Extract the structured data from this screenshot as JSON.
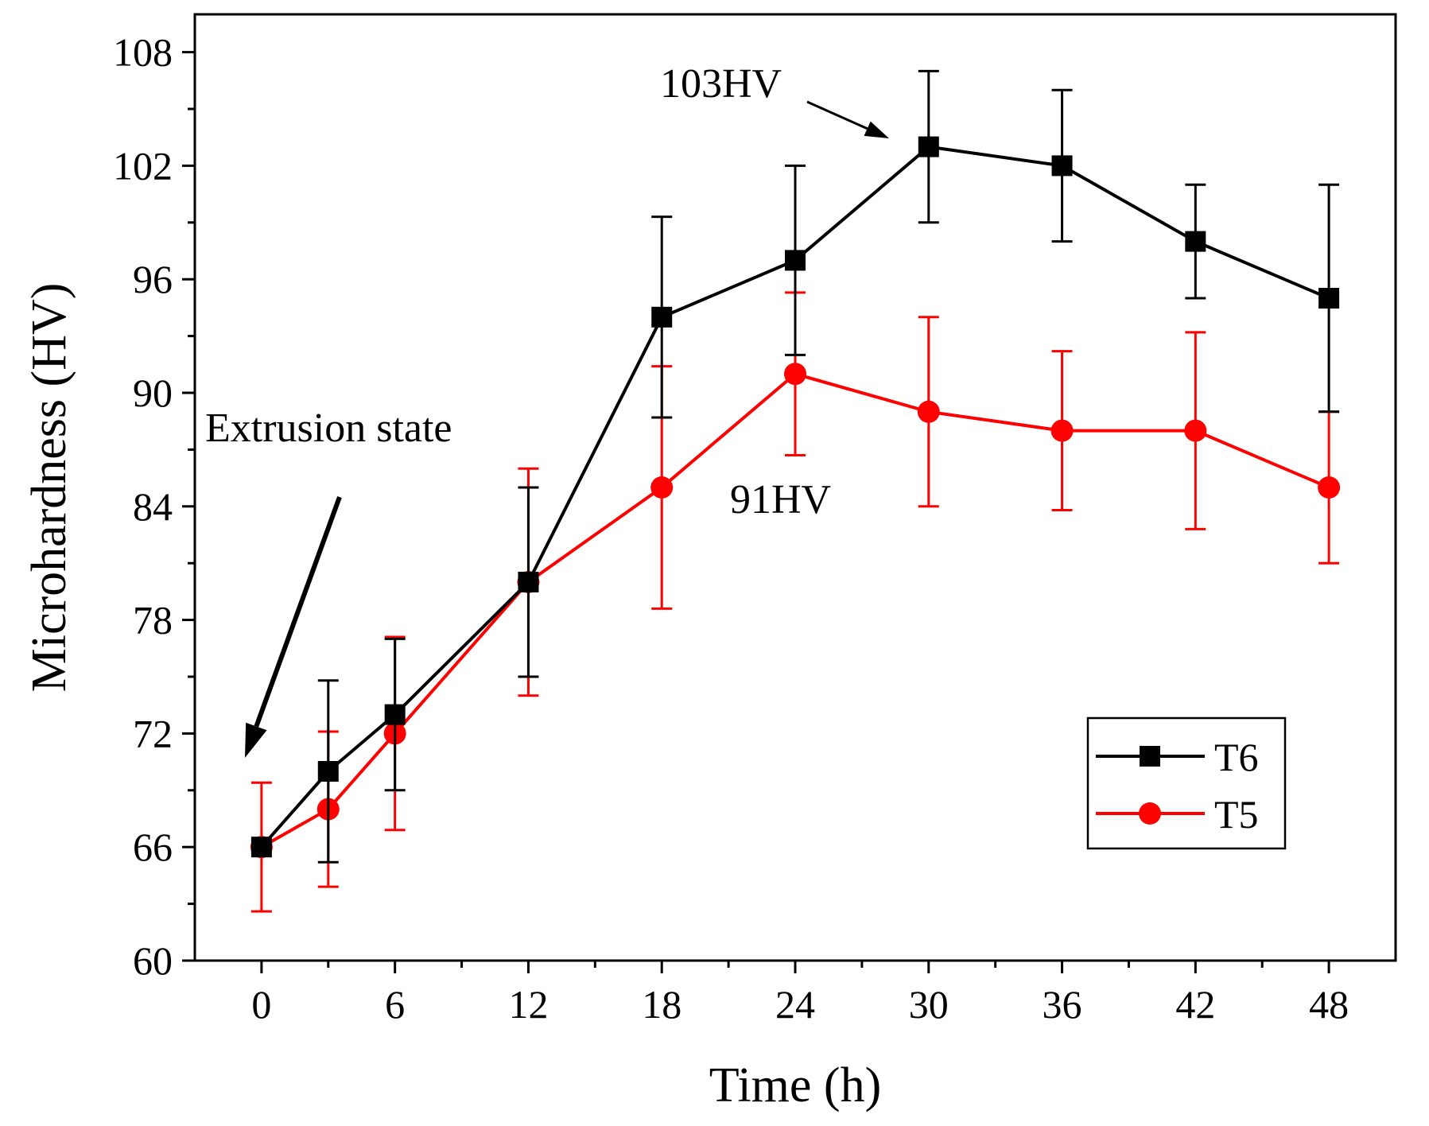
{
  "chart_data": {
    "type": "line",
    "title": "",
    "xlabel": "Time (h)",
    "ylabel": "Microhardness (HV)",
    "xlim": [
      -3,
      51
    ],
    "ylim": [
      60,
      110
    ],
    "xticks": [
      0,
      6,
      12,
      18,
      24,
      30,
      36,
      42,
      48
    ],
    "yticks": [
      60,
      66,
      72,
      78,
      84,
      90,
      96,
      102,
      108
    ],
    "grid": false,
    "legend_position": "bottom-right",
    "series": [
      {
        "name": "T6",
        "color": "#000000",
        "marker": "square",
        "x": [
          0,
          3,
          6,
          12,
          18,
          24,
          30,
          36,
          42,
          48
        ],
        "y": [
          66,
          70,
          73,
          80,
          94,
          97,
          103,
          102,
          98,
          95
        ],
        "error": [
          0,
          4.8,
          4,
          5,
          5.3,
          5,
          4,
          4,
          3,
          6
        ]
      },
      {
        "name": "T5",
        "color": "#ff0000",
        "marker": "circle",
        "x": [
          0,
          3,
          6,
          12,
          18,
          24,
          30,
          36,
          42,
          48
        ],
        "y": [
          66,
          68,
          72,
          80,
          85,
          91,
          89,
          88,
          88,
          85
        ],
        "error": [
          3.4,
          4.1,
          5.1,
          6,
          6.4,
          4.3,
          5,
          4.2,
          5.2,
          4
        ]
      }
    ],
    "annotations": [
      {
        "text": "103HV",
        "x": 30,
        "y": 103
      },
      {
        "text": "91HV",
        "x": 24,
        "y": 91
      },
      {
        "text": "Extrusion state",
        "x": 0,
        "y": 66
      }
    ]
  }
}
